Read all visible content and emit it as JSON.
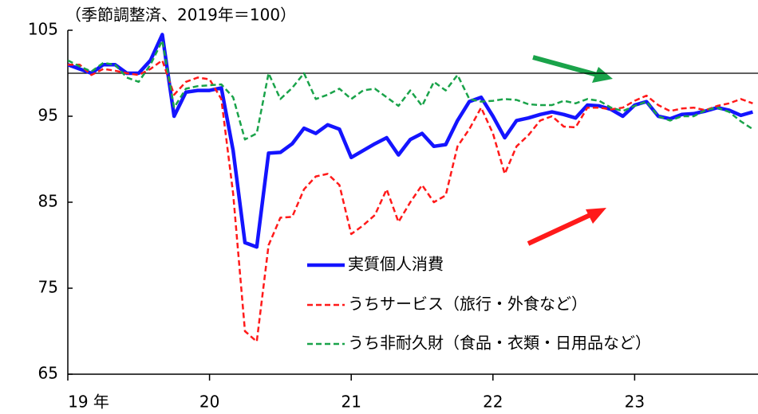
{
  "chart_data": {
    "type": "line",
    "title": "（季節調整済、2019年＝100）",
    "categories": [
      "19 年",
      null,
      null,
      null,
      null,
      null,
      null,
      null,
      null,
      null,
      null,
      null,
      "20",
      null,
      null,
      null,
      null,
      null,
      null,
      null,
      null,
      null,
      null,
      null,
      "21",
      null,
      null,
      null,
      null,
      null,
      null,
      null,
      null,
      null,
      null,
      null,
      "22",
      null,
      null,
      null,
      null,
      null,
      null,
      null,
      null,
      null,
      null,
      null,
      "23",
      null,
      null,
      null,
      null,
      null,
      null,
      null,
      null,
      null,
      null
    ],
    "ylim": [
      65,
      105
    ],
    "yticks": [
      65,
      75,
      85,
      95,
      105
    ],
    "reference_line": 100,
    "series": [
      {
        "name": "実質個人消費",
        "color": "#1414ff",
        "style": "solid",
        "values": [
          101,
          100.5,
          100,
          101,
          101,
          100,
          100,
          101.5,
          104.5,
          95,
          97.8,
          98,
          98,
          98.3,
          91,
          80.3,
          79.8,
          90.7,
          90.8,
          91.8,
          93.6,
          93,
          94,
          93.5,
          90.2,
          91,
          91.8,
          92.5,
          90.5,
          92.3,
          93,
          91.5,
          91.7,
          94.5,
          96.7,
          97.2,
          95,
          92.5,
          94.5,
          94.8,
          95.2,
          95.5,
          95.2,
          94.8,
          96.3,
          96.2,
          95.8,
          95,
          96.3,
          96.7,
          95,
          94.7,
          95.2,
          95.3,
          95.6,
          96,
          95.7,
          95.1,
          95.5
        ]
      },
      {
        "name": "うちサービス（旅行・外食など）",
        "color": "#ff1a1a",
        "style": "dashed",
        "values": [
          101,
          101,
          99.8,
          100.5,
          100.3,
          100,
          99.8,
          100.5,
          101.5,
          97.5,
          99,
          99.5,
          99.3,
          97,
          86,
          70,
          68.8,
          80,
          83.2,
          83.3,
          86.5,
          88,
          88.3,
          87,
          81.3,
          82.3,
          83.5,
          86.5,
          82.7,
          85,
          87,
          85,
          85.8,
          91.5,
          93.5,
          96,
          93,
          88.3,
          91.5,
          92.8,
          94.5,
          95,
          93.8,
          93.7,
          96,
          96,
          95.8,
          96,
          96.8,
          97.4,
          96.3,
          95.6,
          95.9,
          96,
          95.7,
          96.2,
          96.5,
          97,
          96.5
        ]
      },
      {
        "name": "うち非耐久財（食品・衣類・日用品など）",
        "color": "#1aa34a",
        "style": "dashed",
        "values": [
          101.5,
          100.8,
          100.2,
          101.2,
          101,
          99.5,
          99,
          101,
          103.8,
          96,
          98.2,
          98.5,
          98.6,
          98.7,
          97.2,
          92.3,
          93,
          100,
          97,
          98.3,
          100,
          97,
          97.5,
          98.2,
          97,
          98,
          98.2,
          97.2,
          96.2,
          98,
          96.2,
          99,
          98,
          99.8,
          97,
          96.7,
          96.8,
          97,
          96.9,
          96.4,
          96.3,
          96.3,
          96.8,
          96.5,
          97,
          96.8,
          96,
          95.6,
          96.2,
          96.7,
          95,
          94.5,
          95,
          95,
          95.7,
          96,
          95.5,
          94.4,
          93.5
        ]
      }
    ]
  }
}
